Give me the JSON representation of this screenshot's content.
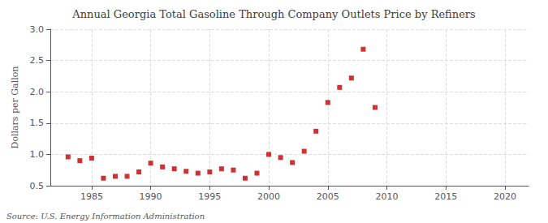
{
  "chart_data": {
    "type": "scatter",
    "title": "Annual Georgia Total Gasoline Through Company Outlets Price by Refiners",
    "ylabel": "Dollars per Gallon",
    "source": "Source: U.S. Energy Information Administration",
    "x": [
      1983,
      1984,
      1985,
      1986,
      1987,
      1988,
      1989,
      1990,
      1991,
      1992,
      1993,
      1994,
      1995,
      1996,
      1997,
      1998,
      1999,
      2000,
      2001,
      2002,
      2003,
      2004,
      2005,
      2006,
      2007,
      2008,
      2009
    ],
    "values": [
      0.96,
      0.9,
      0.94,
      0.62,
      0.65,
      0.65,
      0.72,
      0.86,
      0.8,
      0.77,
      0.73,
      0.7,
      0.72,
      0.77,
      0.75,
      0.62,
      0.7,
      1.0,
      0.95,
      0.87,
      1.05,
      1.37,
      1.83,
      2.07,
      2.22,
      2.68,
      1.75
    ],
    "color": "#C00000",
    "marker": "square",
    "xlim": [
      1981.5,
      2022
    ],
    "xticks": [
      1985,
      1990,
      1995,
      2000,
      2005,
      2010,
      2015,
      2020
    ],
    "ylim": [
      0.5,
      3.0
    ],
    "yticks": [
      0.5,
      {
        "value": 1.0,
        "label": "1.0"
      },
      1.5,
      {
        "value": 2.0,
        "label": "2.0"
      },
      2.5,
      {
        "value": 3.0,
        "label": "3.0"
      }
    ],
    "grid": true
  }
}
